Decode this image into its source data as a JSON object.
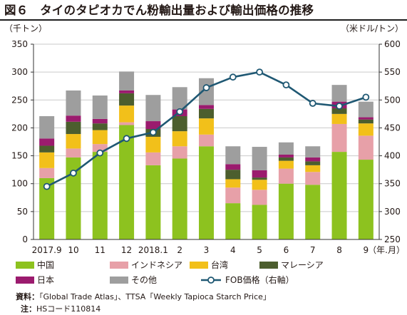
{
  "title": "図６　タイのタピオカでん粉輸出量および輸出価格の推移",
  "notes": {
    "source_label": "資料：",
    "source_text": "「Global Trade Atlas」、TTSA「Weekly Tapioca Starch Price」",
    "note_label": "注：",
    "note_text": "HSコード110814"
  },
  "colors": {
    "china": "#8dc21f",
    "indonesia": "#e7a0a8",
    "taiwan": "#f2c01a",
    "malaysia": "#4c5e2e",
    "japan": "#9b1b6e",
    "other": "#9e9e9e",
    "line": "#1f5873",
    "grid": "#c9c9c9"
  },
  "chart_data": {
    "type": "bar",
    "stacked": true,
    "categories": [
      "2017.9",
      "10",
      "11",
      "12",
      "2018.1",
      "2",
      "3",
      "4",
      "5",
      "6",
      "7",
      "8",
      "9"
    ],
    "xlabel": "（年.月）",
    "ylabel_left": "（千トン）",
    "ylabel_right": "（米ドル/トン）",
    "ylim_left": [
      0,
      350
    ],
    "yticks_left": [
      0,
      50,
      100,
      150,
      200,
      250,
      300,
      350
    ],
    "ylim_right": [
      250,
      600
    ],
    "yticks_right": [
      250,
      300,
      350,
      400,
      450,
      500,
      550,
      600
    ],
    "grid": true,
    "legend_position": "bottom",
    "series": [
      {
        "name": "中国",
        "key": "china",
        "axis": "left",
        "values": [
          110,
          147,
          157,
          205,
          133,
          145,
          167,
          65,
          62,
          100,
          98,
          157,
          143
        ]
      },
      {
        "name": "インドネシア",
        "key": "indonesia",
        "axis": "left",
        "values": [
          18,
          16,
          14,
          5,
          23,
          22,
          21,
          28,
          27,
          27,
          23,
          50,
          43
        ]
      },
      {
        "name": "台湾",
        "key": "taiwan",
        "axis": "left",
        "values": [
          28,
          26,
          25,
          30,
          28,
          27,
          29,
          15,
          18,
          14,
          12,
          18,
          22
        ]
      },
      {
        "name": "マレーシア",
        "key": "malaysia",
        "axis": "left",
        "values": [
          12,
          22,
          12,
          22,
          14,
          27,
          17,
          17,
          4,
          6,
          7,
          10,
          7
        ]
      },
      {
        "name": "日本",
        "key": "japan",
        "axis": "left",
        "values": [
          13,
          11,
          8,
          5,
          14,
          12,
          7,
          10,
          13,
          5,
          7,
          12,
          4
        ]
      },
      {
        "name": "その他",
        "key": "other",
        "axis": "left",
        "values": [
          40,
          45,
          42,
          34,
          47,
          40,
          48,
          32,
          42,
          22,
          20,
          30,
          28
        ]
      },
      {
        "name": "FOB価格（右軸）",
        "key": "line",
        "axis": "right",
        "type": "line",
        "values": [
          345,
          369,
          405,
          431,
          442,
          479,
          522,
          541,
          550,
          527,
          494,
          489,
          505
        ]
      }
    ]
  }
}
